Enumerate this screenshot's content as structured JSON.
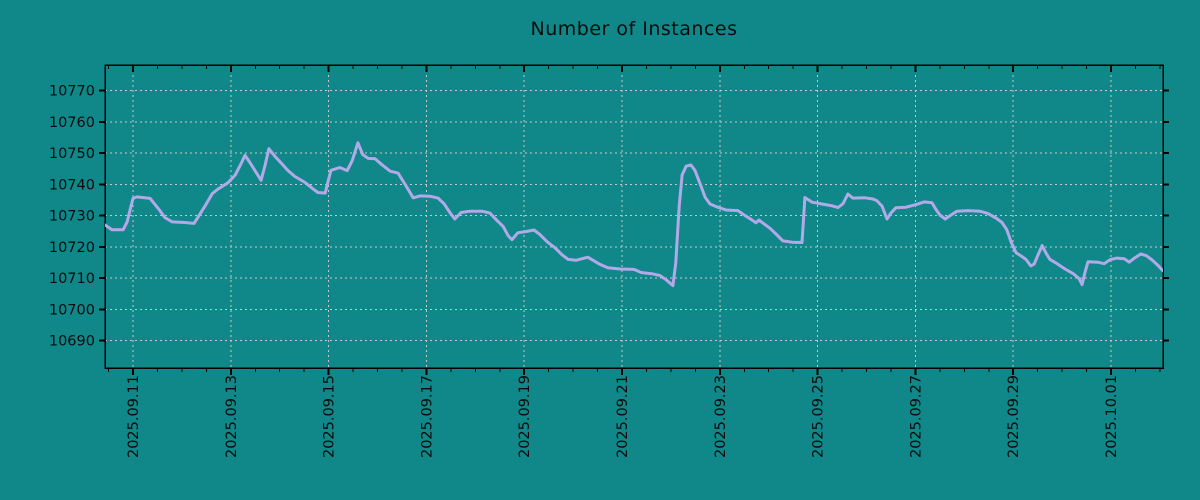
{
  "page": {
    "background_color": "#108789"
  },
  "chart_data": {
    "type": "line",
    "title": "Number of Instances",
    "legend_position": "none",
    "grid": "dashed",
    "colors": {
      "background": "#108789",
      "line": "#b2a9e8",
      "grid": "#c8c8c8",
      "axis": "#000000",
      "text": "#0b0b0b"
    },
    "ylabel": "",
    "xlabel": "",
    "y_ticks": [
      10690,
      10700,
      10710,
      10720,
      10730,
      10740,
      10750,
      10760,
      10770
    ],
    "ylim": [
      10681.2,
      10778.2
    ],
    "x_tick_labels": [
      "2025.09.11",
      "2025.09.13",
      "2025.09.15",
      "2025.09.17",
      "2025.09.19",
      "2025.09.21",
      "2025.09.23",
      "2025.09.25",
      "2025.09.27",
      "2025.09.29",
      "2025.10.01"
    ],
    "x_tick_days": [
      0,
      2,
      4,
      6,
      8,
      10,
      12,
      14,
      16,
      18,
      20
    ],
    "x_minor_tick_interval_days": 0.5,
    "x_epoch": "days since 2025.09.11 00:00",
    "xlim_days": [
      -0.57,
      21.06
    ],
    "series": [
      {
        "name": "instances",
        "color": "#b2a9e8",
        "points": [
          [
            -0.57,
            10727.0
          ],
          [
            -0.43,
            10725.5
          ],
          [
            -0.2,
            10725.5
          ],
          [
            -0.12,
            10728.0
          ],
          [
            0.0,
            10735.5
          ],
          [
            0.08,
            10736.0
          ],
          [
            0.35,
            10735.5
          ],
          [
            0.55,
            10731.6
          ],
          [
            0.65,
            10729.4
          ],
          [
            0.8,
            10728.0
          ],
          [
            1.06,
            10727.8
          ],
          [
            1.25,
            10727.5
          ],
          [
            1.47,
            10733.0
          ],
          [
            1.62,
            10737.0
          ],
          [
            1.74,
            10738.5
          ],
          [
            1.94,
            10740.5
          ],
          [
            2.09,
            10743.0
          ],
          [
            2.19,
            10746.0
          ],
          [
            2.29,
            10749.3
          ],
          [
            2.39,
            10747.0
          ],
          [
            2.49,
            10744.5
          ],
          [
            2.62,
            10741.3
          ],
          [
            2.7,
            10746.0
          ],
          [
            2.78,
            10751.4
          ],
          [
            2.9,
            10749.0
          ],
          [
            3.05,
            10746.5
          ],
          [
            3.17,
            10744.4
          ],
          [
            3.31,
            10742.5
          ],
          [
            3.52,
            10740.6
          ],
          [
            3.66,
            10738.8
          ],
          [
            3.78,
            10737.4
          ],
          [
            3.93,
            10737.2
          ],
          [
            3.99,
            10741.0
          ],
          [
            4.05,
            10744.5
          ],
          [
            4.23,
            10745.4
          ],
          [
            4.38,
            10744.4
          ],
          [
            4.48,
            10747.5
          ],
          [
            4.6,
            10753.3
          ],
          [
            4.7,
            10749.5
          ],
          [
            4.81,
            10748.3
          ],
          [
            4.95,
            10748.2
          ],
          [
            5.09,
            10746.3
          ],
          [
            5.26,
            10744.2
          ],
          [
            5.42,
            10743.6
          ],
          [
            5.56,
            10740.1
          ],
          [
            5.73,
            10735.7
          ],
          [
            5.87,
            10736.3
          ],
          [
            6.07,
            10736.2
          ],
          [
            6.24,
            10735.6
          ],
          [
            6.36,
            10733.8
          ],
          [
            6.48,
            10731.0
          ],
          [
            6.58,
            10728.9
          ],
          [
            6.71,
            10731.0
          ],
          [
            6.89,
            10731.4
          ],
          [
            7.14,
            10731.4
          ],
          [
            7.3,
            10730.8
          ],
          [
            7.44,
            10728.5
          ],
          [
            7.57,
            10726.5
          ],
          [
            7.67,
            10723.6
          ],
          [
            7.75,
            10722.3
          ],
          [
            7.87,
            10724.5
          ],
          [
            8.04,
            10724.9
          ],
          [
            8.2,
            10725.4
          ],
          [
            8.32,
            10724.0
          ],
          [
            8.47,
            10721.6
          ],
          [
            8.63,
            10719.7
          ],
          [
            8.77,
            10717.5
          ],
          [
            8.9,
            10716.0
          ],
          [
            9.06,
            10715.7
          ],
          [
            9.3,
            10716.7
          ],
          [
            9.43,
            10715.5
          ],
          [
            9.55,
            10714.4
          ],
          [
            9.71,
            10713.3
          ],
          [
            9.96,
            10712.9
          ],
          [
            10.25,
            10712.8
          ],
          [
            10.39,
            10711.8
          ],
          [
            10.61,
            10711.4
          ],
          [
            10.78,
            10710.8
          ],
          [
            10.9,
            10709.5
          ],
          [
            11.04,
            10707.6
          ],
          [
            11.1,
            10715.0
          ],
          [
            11.17,
            10733.0
          ],
          [
            11.23,
            10743.0
          ],
          [
            11.31,
            10745.8
          ],
          [
            11.41,
            10746.2
          ],
          [
            11.49,
            10744.5
          ],
          [
            11.6,
            10740.1
          ],
          [
            11.7,
            10735.9
          ],
          [
            11.8,
            10733.7
          ],
          [
            11.94,
            10732.8
          ],
          [
            12.13,
            10731.8
          ],
          [
            12.37,
            10731.6
          ],
          [
            12.49,
            10730.3
          ],
          [
            12.64,
            10728.8
          ],
          [
            12.74,
            10727.7
          ],
          [
            12.8,
            10728.6
          ],
          [
            12.9,
            10727.4
          ],
          [
            13.03,
            10725.9
          ],
          [
            13.17,
            10723.8
          ],
          [
            13.29,
            10721.9
          ],
          [
            13.48,
            10721.5
          ],
          [
            13.68,
            10721.4
          ],
          [
            13.74,
            10735.8
          ],
          [
            13.89,
            10734.3
          ],
          [
            14.09,
            10733.7
          ],
          [
            14.3,
            10733.1
          ],
          [
            14.42,
            10732.6
          ],
          [
            14.52,
            10733.8
          ],
          [
            14.62,
            10736.9
          ],
          [
            14.72,
            10735.6
          ],
          [
            14.97,
            10735.7
          ],
          [
            15.13,
            10735.3
          ],
          [
            15.21,
            10734.8
          ],
          [
            15.32,
            10733.0
          ],
          [
            15.42,
            10728.9
          ],
          [
            15.5,
            10730.8
          ],
          [
            15.6,
            10732.5
          ],
          [
            15.81,
            10732.7
          ],
          [
            16.03,
            10733.6
          ],
          [
            16.18,
            10734.4
          ],
          [
            16.34,
            10734.1
          ],
          [
            16.42,
            10732.0
          ],
          [
            16.5,
            10730.2
          ],
          [
            16.61,
            10728.9
          ],
          [
            16.71,
            10730.0
          ],
          [
            16.85,
            10731.4
          ],
          [
            17.08,
            10731.6
          ],
          [
            17.32,
            10731.4
          ],
          [
            17.48,
            10730.7
          ],
          [
            17.65,
            10729.2
          ],
          [
            17.77,
            10727.8
          ],
          [
            17.87,
            10725.5
          ],
          [
            17.96,
            10721.5
          ],
          [
            18.06,
            10718.1
          ],
          [
            18.16,
            10717.1
          ],
          [
            18.26,
            10716.0
          ],
          [
            18.36,
            10713.9
          ],
          [
            18.43,
            10714.5
          ],
          [
            18.51,
            10717.5
          ],
          [
            18.59,
            10720.4
          ],
          [
            18.67,
            10718.0
          ],
          [
            18.75,
            10716.0
          ],
          [
            18.88,
            10714.8
          ],
          [
            19.06,
            10712.9
          ],
          [
            19.22,
            10711.5
          ],
          [
            19.35,
            10709.8
          ],
          [
            19.41,
            10707.9
          ],
          [
            19.47,
            10712.0
          ],
          [
            19.53,
            10715.2
          ],
          [
            19.73,
            10715.1
          ],
          [
            19.86,
            10714.6
          ],
          [
            19.98,
            10715.9
          ],
          [
            20.12,
            10716.4
          ],
          [
            20.27,
            10716.2
          ],
          [
            20.37,
            10715.1
          ],
          [
            20.47,
            10716.3
          ],
          [
            20.61,
            10717.7
          ],
          [
            20.72,
            10717.2
          ],
          [
            20.84,
            10715.8
          ],
          [
            20.96,
            10714.1
          ],
          [
            21.06,
            10712.4
          ]
        ]
      }
    ]
  }
}
